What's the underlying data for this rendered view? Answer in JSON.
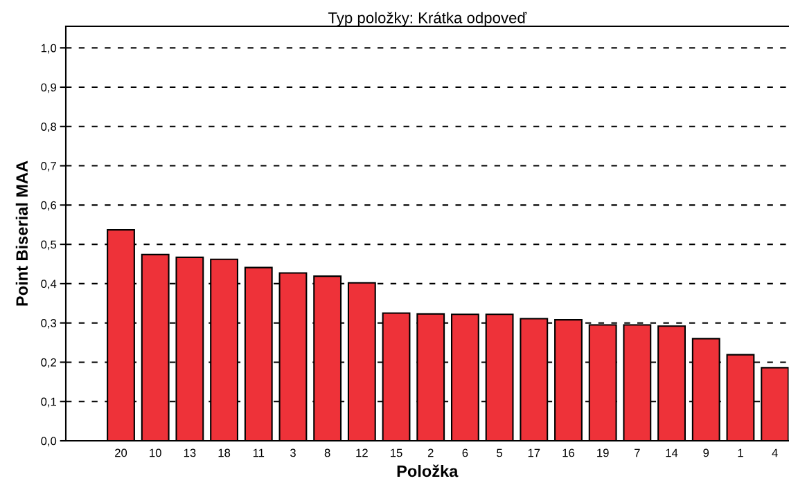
{
  "chart_data": {
    "type": "bar",
    "title": "Typ položky: Krátka odpoveď",
    "xlabel": "Položka",
    "ylabel": "Point Biserial MAA",
    "categories": [
      "20",
      "10",
      "13",
      "18",
      "11",
      "3",
      "8",
      "12",
      "15",
      "2",
      "6",
      "5",
      "17",
      "16",
      "19",
      "7",
      "14",
      "9",
      "1",
      "4"
    ],
    "values": [
      0.537,
      0.474,
      0.467,
      0.462,
      0.441,
      0.427,
      0.419,
      0.402,
      0.325,
      0.323,
      0.322,
      0.322,
      0.311,
      0.308,
      0.295,
      0.295,
      0.292,
      0.26,
      0.219,
      0.186
    ],
    "color": "#ee3239",
    "ylim": [
      0,
      1.055
    ],
    "yticks": [
      {
        "value": 0,
        "label": "0,0"
      },
      {
        "value": 0.1,
        "label": "0,1"
      },
      {
        "value": 0.2,
        "label": "0,2"
      },
      {
        "value": 0.3,
        "label": "0,3"
      },
      {
        "value": 0.4,
        "label": "0,4"
      },
      {
        "value": 0.5,
        "label": "0,5"
      },
      {
        "value": 0.6,
        "label": "0,6"
      },
      {
        "value": 0.7,
        "label": "0,7"
      },
      {
        "value": 0.8,
        "label": "0,8"
      },
      {
        "value": 0.9,
        "label": "0,9"
      },
      {
        "value": 1.0,
        "label": "1,0"
      }
    ],
    "grid": "y",
    "line_style": "dashed"
  }
}
